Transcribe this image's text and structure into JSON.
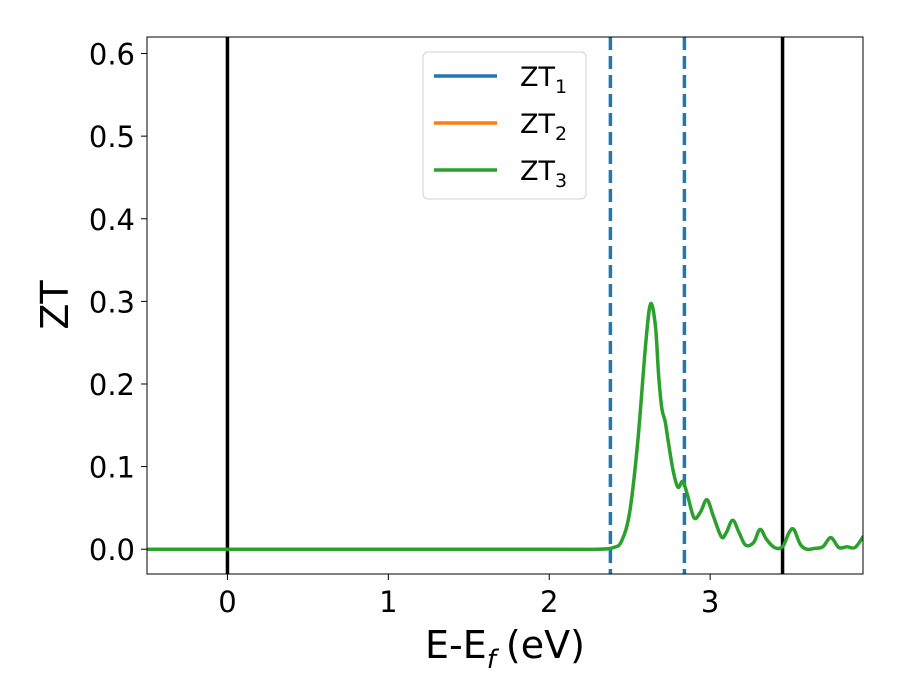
{
  "chart_data": {
    "type": "line",
    "xlabel_main": "E-E",
    "xlabel_sub": "f",
    "xlabel_unit": "(eV)",
    "ylabel": "ZT",
    "xlim": [
      -0.5,
      3.95
    ],
    "ylim": [
      -0.03,
      0.62
    ],
    "xticks": [
      0,
      1,
      2,
      3
    ],
    "yticks": [
      0.0,
      0.1,
      0.2,
      0.3,
      0.4,
      0.5,
      0.6
    ],
    "ytick_labels": [
      "0.0",
      "0.1",
      "0.2",
      "0.3",
      "0.4",
      "0.5",
      "0.6"
    ],
    "grid": false,
    "legend_position": "top-center",
    "series": [
      {
        "base": "ZT",
        "sub": "1",
        "color": "#1f77b4"
      },
      {
        "base": "ZT",
        "sub": "2",
        "color": "#ff7f0e"
      },
      {
        "base": "ZT",
        "sub": "3",
        "color": "#2ca02c"
      }
    ],
    "curve": {
      "x": [
        -0.5,
        2.0,
        2.3,
        2.4,
        2.45,
        2.5,
        2.55,
        2.6,
        2.63,
        2.66,
        2.68,
        2.7,
        2.72,
        2.74,
        2.77,
        2.8,
        2.83,
        2.86,
        2.9,
        2.94,
        2.98,
        3.02,
        3.07,
        3.1,
        3.14,
        3.18,
        3.22,
        3.27,
        3.31,
        3.35,
        3.4,
        3.45,
        3.49,
        3.52,
        3.56,
        3.6,
        3.65,
        3.7,
        3.75,
        3.8,
        3.85,
        3.9,
        3.95
      ],
      "y": [
        0.0,
        0.0,
        0.0,
        0.002,
        0.01,
        0.045,
        0.13,
        0.25,
        0.297,
        0.27,
        0.21,
        0.17,
        0.155,
        0.13,
        0.095,
        0.075,
        0.082,
        0.065,
        0.038,
        0.045,
        0.06,
        0.04,
        0.015,
        0.02,
        0.035,
        0.02,
        0.005,
        0.008,
        0.024,
        0.012,
        0.002,
        0.003,
        0.02,
        0.024,
        0.006,
        0.0,
        0.001,
        0.003,
        0.014,
        0.002,
        0.003,
        0.002,
        0.015
      ],
      "color": "#2ca02c"
    },
    "vlines": [
      {
        "x": 0.0,
        "color": "#000000",
        "style": "solid"
      },
      {
        "x": 2.38,
        "color": "#1f77b4",
        "style": "dashed"
      },
      {
        "x": 2.84,
        "color": "#1f77b4",
        "style": "dashed"
      },
      {
        "x": 3.45,
        "color": "#000000",
        "style": "solid"
      }
    ]
  }
}
